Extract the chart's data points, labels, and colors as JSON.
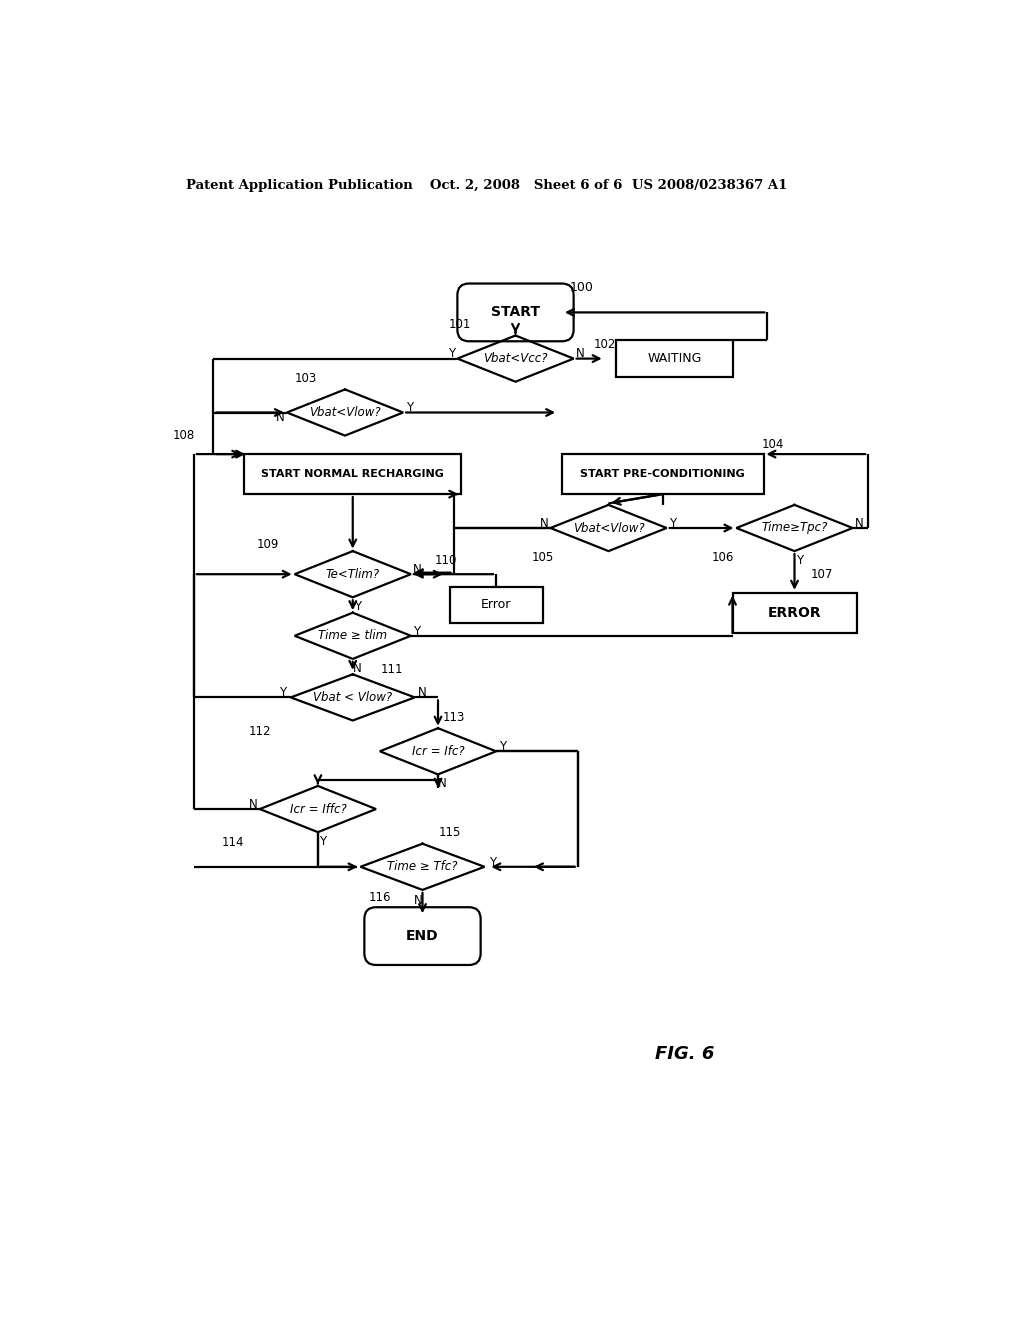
{
  "bg_color": "#ffffff",
  "header_left": "Patent Application Publication",
  "header_mid": "Oct. 2, 2008   Sheet 6 of 6",
  "header_right": "US 2008/0238367 A1"
}
